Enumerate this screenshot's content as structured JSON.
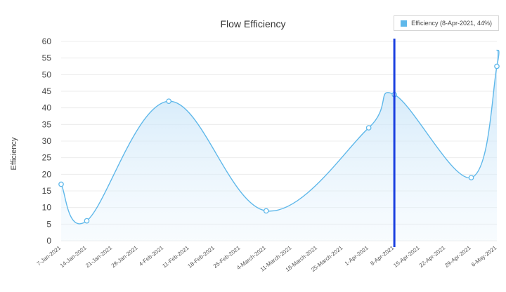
{
  "chart_data": {
    "type": "area",
    "title": "Flow Efficiency",
    "xlabel": "",
    "ylabel": "Efficiency",
    "ylim": [
      0,
      60
    ],
    "yticks": [
      0,
      5,
      10,
      15,
      20,
      25,
      30,
      35,
      40,
      45,
      50,
      55,
      60
    ],
    "categories": [
      "7-Jan-2021",
      "14-Jan-2021",
      "21-Jan-2021",
      "28-Jan-2021",
      "4-Feb-2021",
      "11-Feb-2021",
      "18-Feb-2021",
      "25-Feb-2021",
      "4-March-2021",
      "11-March-2021",
      "18-March-2021",
      "25-March-2021",
      "1-Apr-2021",
      "8-Apr-2021",
      "15-Apr-2021",
      "22-Apr-2021",
      "29-Apr-2021",
      "6-May-2021"
    ],
    "series": [
      {
        "name": "Efficiency",
        "points": [
          {
            "x": 0,
            "y": 17
          },
          {
            "x": 1,
            "y": 6
          },
          {
            "x": 4.2,
            "y": 42
          },
          {
            "x": 8,
            "y": 9
          },
          {
            "x": 12,
            "y": 34
          },
          {
            "x": 13,
            "y": 44
          },
          {
            "x": 16,
            "y": 19
          },
          {
            "x": 17,
            "y": 52.5
          }
        ],
        "end_value": 57.5
      }
    ],
    "highlight_index": 13,
    "legend": "Efficiency (8-Apr-2021, 44%)",
    "legend_position": "top-right",
    "colors": {
      "line": "#5fb8ea",
      "fill": "#d6ecfb",
      "marker": "#1a3fe0"
    }
  }
}
